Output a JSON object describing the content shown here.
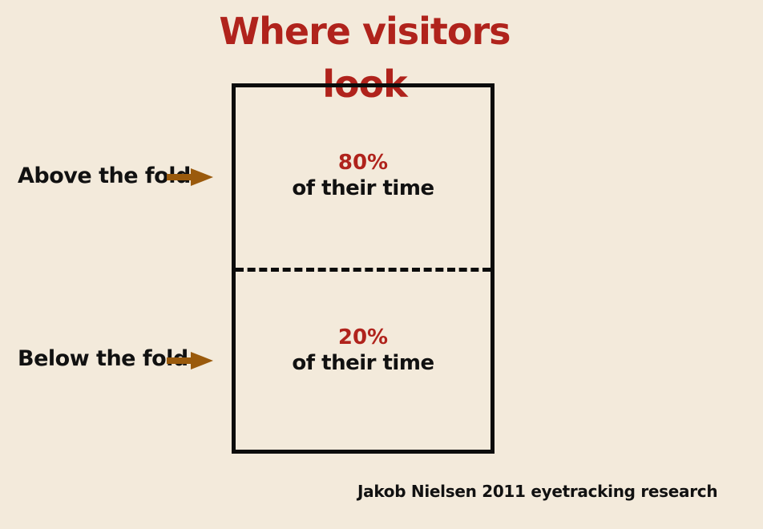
{
  "title": "Where visitors look",
  "above": {
    "label": "Above the fold",
    "percent": "80%",
    "time_text": "of their time"
  },
  "below": {
    "label": "Below the fold",
    "percent": "20%",
    "time_text": "of their time"
  },
  "credit": "Jakob Nielsen 2011 eyetracking research",
  "colors": {
    "background": "#f3eadb",
    "accent": "#b0231c",
    "arrow": "#9a5a0c",
    "text": "#111111"
  },
  "icons": {
    "above_arrow": "arrow-right-icon",
    "below_arrow": "arrow-right-icon"
  }
}
